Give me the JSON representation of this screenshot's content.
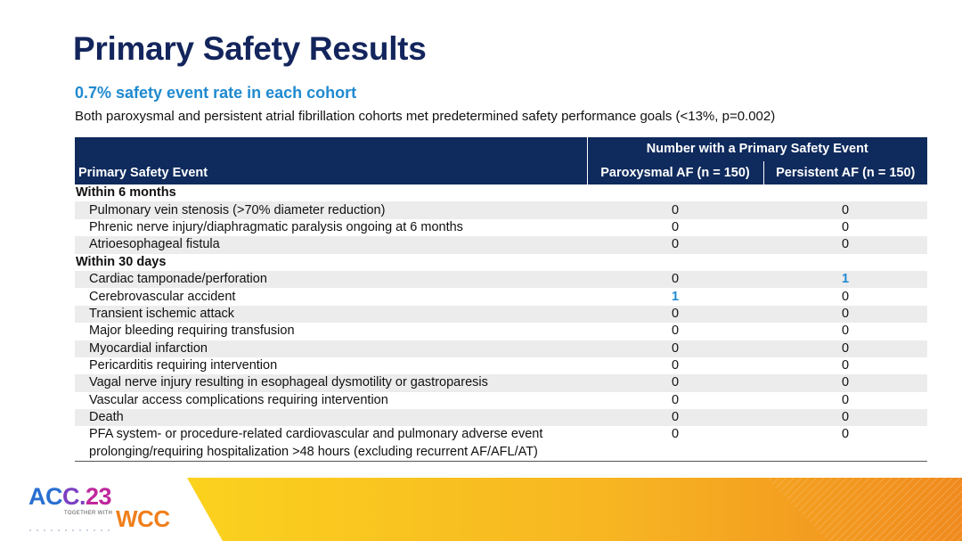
{
  "slide": {
    "title": "Primary Safety Results",
    "subtitle": "0.7% safety event rate in each cohort",
    "description": "Both paroxysmal and persistent atrial fibrillation cohorts met predetermined safety performance goals (<13%, p=0.002)"
  },
  "table": {
    "event_header": "Primary Safety Event",
    "group_header": "Number with a Primary Safety Event",
    "col_paroxysmal": "Paroxysmal AF (n = 150)",
    "col_persistent": "Persistent AF (n = 150)",
    "section1": "Within 6 months",
    "section2": "Within 30 days",
    "rows": [
      {
        "event": "Pulmonary vein stenosis (>70% diameter reduction)",
        "paroxysmal": "0",
        "persistent": "0"
      },
      {
        "event": "Phrenic nerve injury/diaphragmatic paralysis ongoing at 6 months",
        "paroxysmal": "0",
        "persistent": "0"
      },
      {
        "event": "Atrioesophageal fistula",
        "paroxysmal": "0",
        "persistent": "0"
      },
      {
        "event": "Cardiac tamponade/perforation",
        "paroxysmal": "0",
        "persistent": "1"
      },
      {
        "event": "Cerebrovascular accident",
        "paroxysmal": "1",
        "persistent": "0"
      },
      {
        "event": "Transient ischemic attack",
        "paroxysmal": "0",
        "persistent": "0"
      },
      {
        "event": "Major bleeding requiring transfusion",
        "paroxysmal": "0",
        "persistent": "0"
      },
      {
        "event": "Myocardial infarction",
        "paroxysmal": "0",
        "persistent": "0"
      },
      {
        "event": "Pericarditis requiring intervention",
        "paroxysmal": "0",
        "persistent": "0"
      },
      {
        "event": "Vagal nerve injury resulting in esophageal dysmotility or gastroparesis",
        "paroxysmal": "0",
        "persistent": "0"
      },
      {
        "event": "Vascular access complications requiring intervention",
        "paroxysmal": "0",
        "persistent": "0"
      },
      {
        "event": "Death",
        "paroxysmal": "0",
        "persistent": "0"
      },
      {
        "event": "PFA system- or procedure-related cardiovascular and pulmonary adverse event prolonging/requiring hospitalization >48 hours (excluding recurrent AF/AFL/AT)",
        "paroxysmal": "0",
        "persistent": "0"
      }
    ]
  },
  "footer": {
    "logo_acc_a": "AC",
    "logo_acc_b": "C.",
    "logo_acc_c": "23",
    "logo_together": "TOGETHER WITH",
    "logo_wcc": "WCC"
  },
  "colors": {
    "title": "#13255c",
    "accent": "#1f8ad0",
    "header_bg": "#0f2a5c",
    "row_shade": "#ececec",
    "stripe_yellow": "#f9c81a",
    "stripe_orange": "#f08a1e"
  }
}
